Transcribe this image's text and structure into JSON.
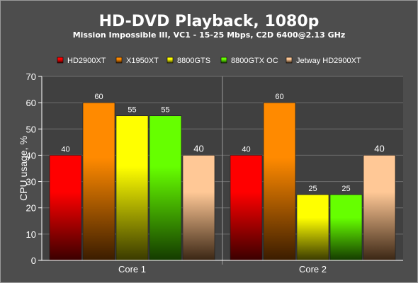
{
  "chart_data": {
    "type": "bar",
    "title": "HD-DVD Playback, 1080p",
    "subtitle": "Mission Impossible III, VC1 - 15-25 Mbps, C2D 6400@2.13 GHz",
    "ylabel": "CPU usage, %",
    "xlabel": "",
    "ylim": [
      0,
      70
    ],
    "yticks": [
      0,
      10,
      20,
      30,
      40,
      50,
      60,
      70
    ],
    "grid": true,
    "legend_position": "top",
    "categories": [
      "Core 1",
      "Core 2"
    ],
    "series": [
      {
        "name": "HD2900XT",
        "values": [
          40,
          40
        ],
        "color": "#ff0000",
        "color_dark": "#3a0000"
      },
      {
        "name": "X1950XT",
        "values": [
          60,
          60
        ],
        "color": "#ff8a00",
        "color_dark": "#3a1c00"
      },
      {
        "name": "8800GTS",
        "values": [
          55,
          25
        ],
        "color": "#ffff00",
        "color_dark": "#3a3a00"
      },
      {
        "name": "8800GTX OC",
        "values": [
          55,
          25
        ],
        "color": "#66ff00",
        "color_dark": "#143a00"
      },
      {
        "name": "Jetway HD2900XT",
        "values": [
          40,
          40
        ],
        "color": "#ffc896",
        "color_dark": "#3a2614"
      }
    ],
    "data_labels": [
      [
        "40",
        "40"
      ],
      [
        "60",
        "60"
      ],
      [
        "55",
        "25"
      ],
      [
        "55",
        "25"
      ],
      [
        "40",
        "40"
      ]
    ]
  }
}
